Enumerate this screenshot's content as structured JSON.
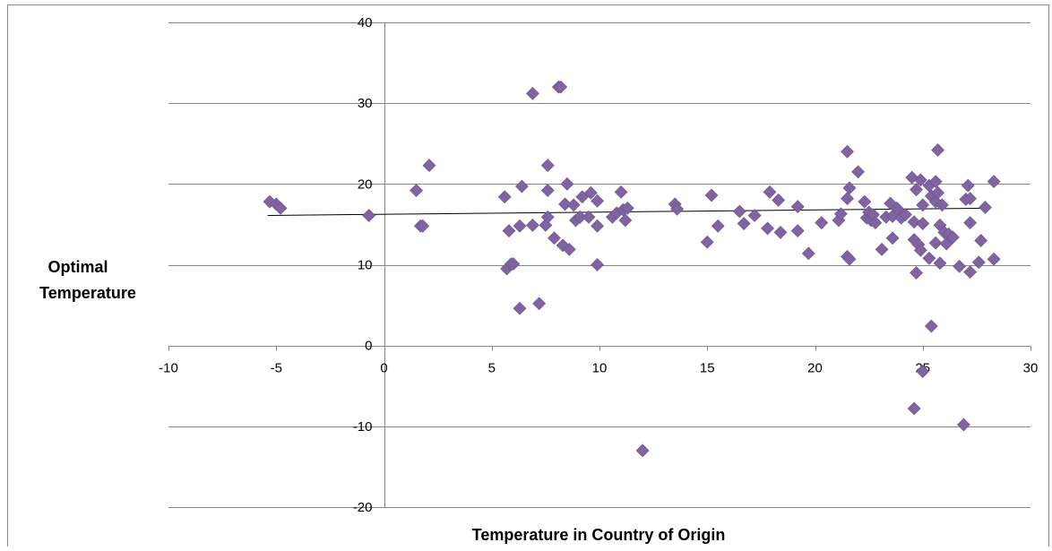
{
  "chart_data": {
    "type": "scatter",
    "title": "",
    "xlabel": "Temperature in Country of Origin",
    "ylabel_lines": [
      "Optimal",
      "Temperature"
    ],
    "xlim": [
      -10,
      30
    ],
    "ylim": [
      -20,
      40
    ],
    "x_ticks": [
      -10,
      -5,
      0,
      5,
      10,
      15,
      20,
      25,
      30
    ],
    "y_ticks": [
      -20,
      -10,
      0,
      10,
      20,
      30,
      40
    ],
    "grid": "horizontal",
    "legend": "none",
    "marker": "diamond",
    "marker_color": "#8064A2",
    "trendline": {
      "type": "linear",
      "color": "#000000",
      "points": [
        [
          -5.4,
          16.1
        ],
        [
          28.0,
          17.0
        ]
      ]
    },
    "points": [
      [
        -5.3,
        17.8
      ],
      [
        -5.0,
        17.5
      ],
      [
        -4.8,
        17.0
      ],
      [
        -0.7,
        16.1
      ],
      [
        1.5,
        19.2
      ],
      [
        1.7,
        14.8
      ],
      [
        1.8,
        14.8
      ],
      [
        2.1,
        22.3
      ],
      [
        5.6,
        18.4
      ],
      [
        5.7,
        9.5
      ],
      [
        5.8,
        14.2
      ],
      [
        5.9,
        10.1
      ],
      [
        6.0,
        10.1
      ],
      [
        6.3,
        14.8
      ],
      [
        6.3,
        4.6
      ],
      [
        6.4,
        19.7
      ],
      [
        6.9,
        14.9
      ],
      [
        6.9,
        31.2
      ],
      [
        7.2,
        5.2
      ],
      [
        7.5,
        14.9
      ],
      [
        7.6,
        15.9
      ],
      [
        7.6,
        19.2
      ],
      [
        7.6,
        22.3
      ],
      [
        7.9,
        13.3
      ],
      [
        8.1,
        32.0
      ],
      [
        8.2,
        32.0
      ],
      [
        8.3,
        12.4
      ],
      [
        8.4,
        17.5
      ],
      [
        8.5,
        20.0
      ],
      [
        8.6,
        11.9
      ],
      [
        8.8,
        17.4
      ],
      [
        8.9,
        15.5
      ],
      [
        9.1,
        15.9
      ],
      [
        9.2,
        18.4
      ],
      [
        9.5,
        15.9
      ],
      [
        9.6,
        18.9
      ],
      [
        9.9,
        17.9
      ],
      [
        9.9,
        14.8
      ],
      [
        9.9,
        10.0
      ],
      [
        10.6,
        15.9
      ],
      [
        10.8,
        16.4
      ],
      [
        11.0,
        19.0
      ],
      [
        11.1,
        16.8
      ],
      [
        11.2,
        15.5
      ],
      [
        11.3,
        17.0
      ],
      [
        12.0,
        -13.0
      ],
      [
        13.5,
        17.5
      ],
      [
        13.6,
        16.9
      ],
      [
        15.0,
        12.8
      ],
      [
        15.2,
        18.6
      ],
      [
        15.5,
        14.8
      ],
      [
        16.5,
        16.6
      ],
      [
        16.7,
        15.1
      ],
      [
        17.2,
        16.1
      ],
      [
        17.8,
        14.5
      ],
      [
        17.9,
        19.0
      ],
      [
        18.3,
        18.0
      ],
      [
        18.4,
        14.0
      ],
      [
        19.2,
        17.2
      ],
      [
        19.2,
        14.2
      ],
      [
        19.7,
        11.4
      ],
      [
        20.3,
        15.2
      ],
      [
        21.1,
        15.5
      ],
      [
        21.2,
        16.3
      ],
      [
        21.5,
        24.0
      ],
      [
        21.5,
        18.2
      ],
      [
        21.5,
        11.0
      ],
      [
        21.6,
        19.5
      ],
      [
        21.6,
        10.7
      ],
      [
        22.0,
        21.5
      ],
      [
        22.3,
        17.8
      ],
      [
        22.4,
        15.8
      ],
      [
        22.5,
        16.5
      ],
      [
        22.6,
        15.5
      ],
      [
        22.7,
        16.2
      ],
      [
        22.8,
        15.2
      ],
      [
        23.1,
        11.9
      ],
      [
        23.3,
        15.9
      ],
      [
        23.5,
        17.6
      ],
      [
        23.6,
        16.0
      ],
      [
        23.6,
        13.3
      ],
      [
        23.8,
        17.0
      ],
      [
        23.9,
        16.7
      ],
      [
        24.0,
        15.8
      ],
      [
        24.2,
        16.2
      ],
      [
        24.5,
        20.8
      ],
      [
        24.6,
        15.3
      ],
      [
        24.6,
        13.1
      ],
      [
        24.6,
        -7.8
      ],
      [
        24.7,
        19.3
      ],
      [
        24.7,
        9.0
      ],
      [
        24.8,
        12.5
      ],
      [
        24.9,
        20.5
      ],
      [
        24.9,
        11.8
      ],
      [
        25.0,
        15.1
      ],
      [
        25.0,
        17.4
      ],
      [
        25.0,
        -3.2
      ],
      [
        25.3,
        19.8
      ],
      [
        25.3,
        10.8
      ],
      [
        25.4,
        18.5
      ],
      [
        25.4,
        2.4
      ],
      [
        25.6,
        20.3
      ],
      [
        25.6,
        17.8
      ],
      [
        25.6,
        12.7
      ],
      [
        25.7,
        24.2
      ],
      [
        25.7,
        18.9
      ],
      [
        25.8,
        14.9
      ],
      [
        25.8,
        10.2
      ],
      [
        25.9,
        17.4
      ],
      [
        26.0,
        14.0
      ],
      [
        26.1,
        12.6
      ],
      [
        26.2,
        13.8
      ],
      [
        26.4,
        13.4
      ],
      [
        26.7,
        9.8
      ],
      [
        26.9,
        -9.8
      ],
      [
        27.0,
        18.1
      ],
      [
        27.1,
        19.8
      ],
      [
        27.2,
        15.2
      ],
      [
        27.2,
        9.1
      ],
      [
        27.2,
        18.2
      ],
      [
        27.6,
        10.3
      ],
      [
        27.7,
        13.0
      ],
      [
        27.9,
        17.1
      ],
      [
        28.3,
        20.3
      ],
      [
        28.3,
        10.7
      ]
    ]
  }
}
